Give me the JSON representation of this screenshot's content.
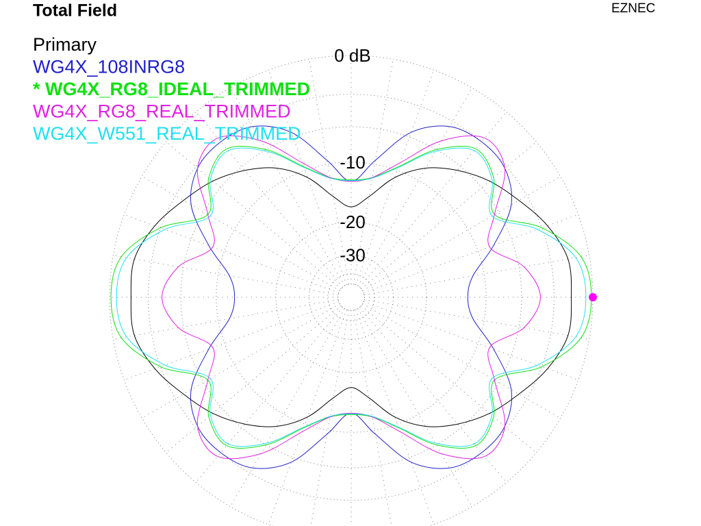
{
  "chart_data": {
    "type": "polar",
    "title": "Total Field",
    "program": "EZNEC",
    "scale": "arrl-log",
    "rmax": 0,
    "rticks": [
      {
        "value": 0,
        "label": "0 dB"
      },
      -10,
      -20,
      -30
    ],
    "rminor": [
      -3,
      -6,
      -40,
      -50
    ],
    "thetaticks": [
      0,
      10,
      20,
      30,
      40,
      50,
      60,
      70,
      80,
      90,
      100,
      110,
      120,
      130,
      140,
      150,
      160,
      170,
      180,
      190,
      200,
      210,
      220,
      230,
      240,
      250,
      260,
      270,
      280,
      290,
      300,
      310,
      320,
      330,
      340,
      350
    ],
    "theta": [
      0,
      10,
      20,
      30,
      40,
      50,
      60,
      70,
      80,
      90,
      100,
      110,
      120,
      130,
      140,
      150,
      160,
      170,
      180,
      190,
      200,
      210,
      220,
      230,
      240,
      250,
      260,
      270,
      280,
      290,
      300,
      310,
      320,
      330,
      340,
      350
    ],
    "series": [
      {
        "name": "Primary",
        "color": "#000000",
        "bold": false,
        "values": [
          -1.6,
          -1.6,
          -2.5,
          -3.8,
          -5.0,
          -6.5,
          -8.3,
          -11.0,
          -14.8,
          -16.9,
          -14.8,
          -11.0,
          -8.3,
          -6.5,
          -5.0,
          -3.8,
          -2.5,
          -1.6,
          -1.6,
          -1.6,
          -2.5,
          -3.8,
          -5.0,
          -6.5,
          -8.3,
          -11.0,
          -14.8,
          -16.9,
          -14.8,
          -11.0,
          -8.3,
          -6.5,
          -5.0,
          -3.8,
          -2.5,
          -1.6
        ]
      },
      {
        "name": "WG4X_108INRG8",
        "color": "#2020c8",
        "bold": false,
        "values": [
          -12.5,
          -11.5,
          -8.0,
          -4.6,
          -3.2,
          -3.0,
          -3.5,
          -5.5,
          -9.5,
          -12.6,
          -9.5,
          -5.5,
          -3.5,
          -3.0,
          -3.2,
          -4.6,
          -8.0,
          -11.5,
          -12.5,
          -11.5,
          -8.0,
          -4.6,
          -3.2,
          -3.0,
          -3.5,
          -5.5,
          -9.5,
          -12.6,
          -9.5,
          -5.5,
          -3.5,
          -3.0,
          -3.2,
          -4.6,
          -8.0,
          -11.5
        ]
      },
      {
        "name": "* WG4X_RG8_IDEAL_TRIMMED",
        "color": "#10e010",
        "bold": true,
        "values": [
          -0.1,
          -0.6,
          -3.0,
          -6.5,
          -4.5,
          -3.8,
          -6.0,
          -9.5,
          -11.8,
          -12.4,
          -11.8,
          -9.5,
          -6.0,
          -3.8,
          -4.5,
          -6.5,
          -3.0,
          -0.6,
          -0.1,
          -0.6,
          -3.0,
          -6.5,
          -4.5,
          -3.8,
          -6.0,
          -9.5,
          -11.8,
          -12.4,
          -11.8,
          -9.5,
          -6.0,
          -3.8,
          -4.5,
          -6.5,
          -3.0,
          -0.6
        ]
      },
      {
        "name": "WG4X_RG8_REAL_TRIMMED",
        "color": "#e020e0",
        "bold": false,
        "values": [
          -4.2,
          -5.5,
          -8.5,
          -6.5,
          -3.2,
          -2.6,
          -5.0,
          -9.0,
          -11.8,
          -12.6,
          -11.8,
          -9.0,
          -5.0,
          -2.6,
          -3.2,
          -6.5,
          -8.5,
          -5.5,
          -4.2,
          -5.5,
          -8.5,
          -6.5,
          -3.2,
          -2.6,
          -5.0,
          -9.0,
          -11.8,
          -12.6,
          -11.8,
          -9.0,
          -5.0,
          -2.6,
          -3.2,
          -6.5,
          -8.5,
          -5.5
        ]
      },
      {
        "name": "WG4X_W551_REAL_TRIMMED",
        "color": "#20e0f0",
        "bold": false,
        "values": [
          -0.5,
          -1.0,
          -3.4,
          -6.8,
          -4.7,
          -4.0,
          -6.2,
          -9.6,
          -11.9,
          -12.5,
          -11.9,
          -9.6,
          -6.2,
          -4.0,
          -4.7,
          -6.8,
          -3.4,
          -1.0,
          -0.5,
          -1.0,
          -3.4,
          -6.8,
          -4.7,
          -4.0,
          -6.2,
          -9.6,
          -11.9,
          -12.5,
          -11.9,
          -9.6,
          -6.2,
          -4.0,
          -4.7,
          -6.8,
          -3.4,
          -1.0
        ]
      }
    ],
    "marker": {
      "theta": 0,
      "value": 0,
      "color": "#ff00ff"
    }
  }
}
